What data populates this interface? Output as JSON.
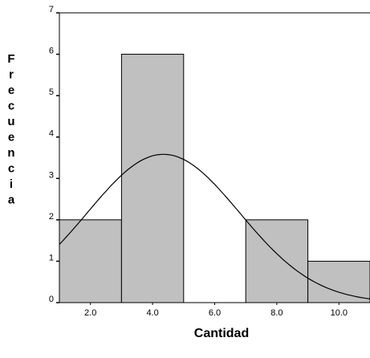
{
  "chart_data": {
    "type": "bar",
    "subtype": "histogram",
    "xlabel": "Cantidad",
    "ylabel": "Frecuencia",
    "bins": [
      {
        "start": 1.0,
        "end": 3.0,
        "count": 2
      },
      {
        "start": 3.0,
        "end": 5.0,
        "count": 6
      },
      {
        "start": 5.0,
        "end": 7.0,
        "count": 0
      },
      {
        "start": 7.0,
        "end": 9.0,
        "count": 2
      },
      {
        "start": 9.0,
        "end": 11.0,
        "count": 1
      }
    ],
    "x_ticks": [
      {
        "value": 2.0,
        "label": "2.0"
      },
      {
        "value": 4.0,
        "label": "4.0"
      },
      {
        "value": 6.0,
        "label": "6.0"
      },
      {
        "value": 8.0,
        "label": "8.0"
      },
      {
        "value": 10.0,
        "label": "10.0"
      }
    ],
    "y_ticks": [
      {
        "value": 0,
        "label": "0"
      },
      {
        "value": 1,
        "label": "1"
      },
      {
        "value": 2,
        "label": "2"
      },
      {
        "value": 3,
        "label": "3"
      },
      {
        "value": 4,
        "label": "4"
      },
      {
        "value": 5,
        "label": "5"
      },
      {
        "value": 6,
        "label": "6"
      },
      {
        "value": 7,
        "label": "7"
      }
    ],
    "xlim": [
      1.0,
      11.0
    ],
    "ylim": [
      0,
      7
    ],
    "normal_curve": {
      "mean": 4.35,
      "sd": 2.45,
      "n": 11,
      "bin_width": 2.0
    },
    "bar_color": "#c0c0c0",
    "line_color": "#000000",
    "grid": false
  }
}
